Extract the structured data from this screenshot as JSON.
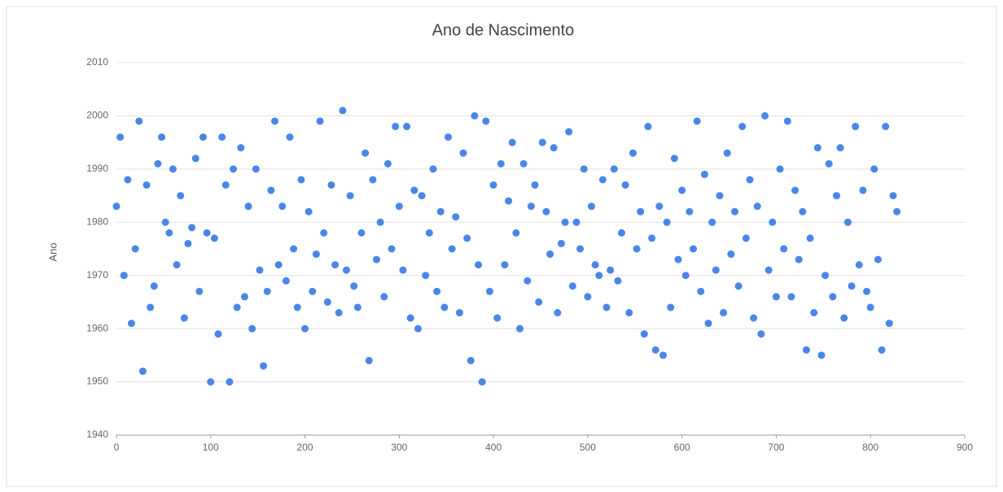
{
  "chart_data": {
    "type": "scatter",
    "title": "Ano de Nascimento",
    "ylabel": "Ano",
    "color": "#4a86e8",
    "grid": true,
    "xlim": [
      0,
      900
    ],
    "xticks": [
      0,
      100,
      200,
      300,
      400,
      500,
      600,
      700,
      800,
      900
    ],
    "ylim": [
      1940,
      2010
    ],
    "yticks": [
      1940,
      1950,
      1960,
      1970,
      1980,
      1990,
      2000,
      2010
    ],
    "x": [
      0,
      4,
      8,
      12,
      16,
      20,
      24,
      28,
      32,
      36,
      40,
      44,
      48,
      52,
      56,
      60,
      64,
      68,
      72,
      76,
      80,
      84,
      88,
      92,
      96,
      100,
      104,
      108,
      112,
      116,
      120,
      124,
      128,
      132,
      136,
      140,
      144,
      148,
      152,
      156,
      160,
      164,
      168,
      172,
      176,
      180,
      184,
      188,
      192,
      196,
      200,
      204,
      208,
      212,
      216,
      220,
      224,
      228,
      232,
      236,
      240,
      244,
      248,
      252,
      256,
      260,
      264,
      268,
      272,
      276,
      280,
      284,
      288,
      292,
      296,
      300,
      304,
      308,
      312,
      316,
      320,
      324,
      328,
      332,
      336,
      340,
      344,
      348,
      352,
      356,
      360,
      364,
      368,
      372,
      376,
      380,
      384,
      388,
      392,
      396,
      400,
      404,
      408,
      412,
      416,
      420,
      424,
      428,
      432,
      436,
      440,
      444,
      448,
      452,
      456,
      460,
      464,
      468,
      472,
      476,
      480,
      484,
      488,
      492,
      496,
      500,
      504,
      508,
      512,
      516,
      520,
      524,
      528,
      532,
      536,
      540,
      544,
      548,
      552,
      556,
      560,
      564,
      568,
      572,
      576,
      580,
      584,
      588,
      592,
      596,
      600,
      604,
      608,
      612,
      616,
      620,
      624,
      628,
      632,
      636,
      640,
      644,
      648,
      652,
      656,
      660,
      664,
      668,
      672,
      676,
      680,
      684,
      688,
      692,
      696,
      700,
      704,
      708,
      712,
      716,
      720,
      724,
      728,
      732,
      736,
      740,
      744,
      748,
      752,
      756,
      760,
      764,
      768,
      772,
      776,
      780,
      784,
      788,
      792,
      796,
      800,
      804,
      808,
      812,
      816,
      820,
      824,
      828
    ],
    "values": [
      1983,
      1996,
      1970,
      1988,
      1961,
      1975,
      1999,
      1952,
      1987,
      1964,
      1968,
      1991,
      1996,
      1980,
      1978,
      1990,
      1972,
      1985,
      1962,
      1976,
      1979,
      1992,
      1967,
      1996,
      1978,
      1950,
      1977,
      1959,
      1996,
      1987,
      1950,
      1990,
      1964,
      1994,
      1966,
      1983,
      1960,
      1990,
      1971,
      1953,
      1967,
      1986,
      1999,
      1972,
      1983,
      1969,
      1996,
      1975,
      1964,
      1988,
      1960,
      1982,
      1967,
      1974,
      1999,
      1978,
      1965,
      1987,
      1972,
      1963,
      2001,
      1971,
      1985,
      1968,
      1964,
      1978,
      1993,
      1954,
      1988,
      1973,
      1980,
      1966,
      1991,
      1975,
      1998,
      1983,
      1971,
      1998,
      1962,
      1986,
      1960,
      1985,
      1970,
      1978,
      1990,
      1967,
      1982,
      1964,
      1996,
      1975,
      1981,
      1963,
      1993,
      1977,
      1954,
      2000,
      1972,
      1950,
      1999,
      1967,
      1987,
      1962,
      1991,
      1972,
      1984,
      1995,
      1978,
      1960,
      1991,
      1969,
      1983,
      1987,
      1965,
      1995,
      1982,
      1974,
      1994,
      1963,
      1976,
      1980,
      1997,
      1968,
      1980,
      1975,
      1990,
      1966,
      1983,
      1972,
      1970,
      1988,
      1964,
      1971,
      1990,
      1969,
      1978,
      1987,
      1963,
      1993,
      1975,
      1982,
      1959,
      1998,
      1977,
      1956,
      1983,
      1955,
      1980,
      1964,
      1992,
      1973,
      1986,
      1970,
      1982,
      1975,
      1999,
      1967,
      1989,
      1961,
      1980,
      1971,
      1985,
      1963,
      1993,
      1974,
      1982,
      1968,
      1998,
      1977,
      1988,
      1962,
      1983,
      1959,
      2000,
      1971,
      1980,
      1966,
      1990,
      1975,
      1999,
      1966,
      1986,
      1973,
      1982,
      1956,
      1977,
      1963,
      1994,
      1955,
      1970,
      1991,
      1966,
      1985,
      1994,
      1962,
      1980,
      1968,
      1998,
      1972,
      1986,
      1967,
      1964,
      1990,
      1973,
      1956,
      1998,
      1961,
      1985,
      1982
    ]
  }
}
